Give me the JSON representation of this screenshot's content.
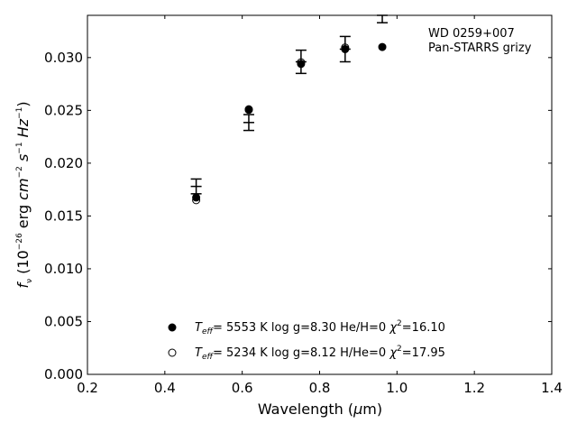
{
  "chart_data": {
    "type": "scatter",
    "title": "",
    "xlabel": {
      "prefix": "Wavelength (",
      "symbol": "μ",
      "suffix": "m)"
    },
    "ylabel": {
      "text": "f_ν (10^-26 erg cm^-2 s^-1 Hz^-1)"
    },
    "xlim": [
      0.2,
      1.4
    ],
    "ylim": [
      0.0,
      0.034
    ],
    "xticks": [
      "0.2",
      "0.4",
      "0.6",
      "0.8",
      "1.0",
      "1.2",
      "1.4"
    ],
    "yticks": [
      "0.000",
      "0.005",
      "0.010",
      "0.015",
      "0.020",
      "0.025",
      "0.030"
    ],
    "grid": false,
    "annotation_lines": [
      "WD 0259+007",
      "Pan-STARRS grizy"
    ],
    "observed": {
      "x": [
        0.481,
        0.617,
        0.752,
        0.866,
        0.962
      ],
      "y": [
        0.0178,
        0.02385,
        0.0296,
        0.0308,
        0.034
      ],
      "yerr": [
        0.0007,
        0.00075,
        0.0011,
        0.0012,
        0.0007
      ]
    },
    "series": [
      {
        "marker": "filled",
        "x": [
          0.481,
          0.617,
          0.752,
          0.866,
          0.962
        ],
        "y": [
          0.01675,
          0.0251,
          0.0294,
          0.0308,
          0.031
        ]
      },
      {
        "marker": "open",
        "x": [
          0.481,
          0.617,
          0.752,
          0.866
        ],
        "y": [
          0.0165,
          0.02505,
          0.02955,
          0.03095
        ]
      }
    ],
    "legend": {
      "placement": "lower-center",
      "entries": [
        {
          "marker": "filled",
          "teff_value": "5553 K",
          "logg": "log g=8.30",
          "comp": "He/H=0",
          "chi2_value": "=16.10"
        },
        {
          "marker": "open",
          "teff_value": "5234 K",
          "logg": "log g=8.12",
          "comp": "H/He=0",
          "chi2_value": "=17.95"
        }
      ]
    },
    "colors": {
      "marker": "#000000",
      "axes": "#000000",
      "background": "#ffffff"
    }
  }
}
